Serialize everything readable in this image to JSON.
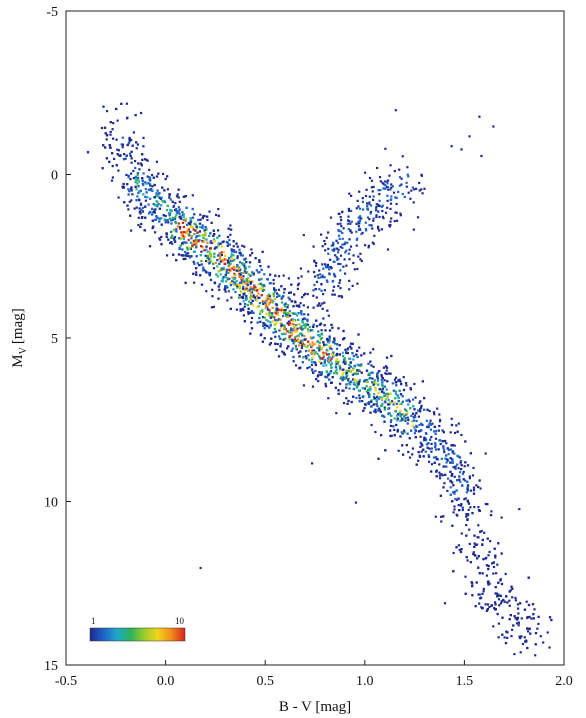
{
  "chart_data": {
    "type": "scatter",
    "subtype": "density-colored scatter (Hertzsprung-Russell diagram)",
    "xlabel": "B - V [mag]",
    "ylabel_main": "M",
    "ylabel_sub": "V",
    "ylabel_unit": "[mag]",
    "xlim": [
      -0.5,
      2.0
    ],
    "ylim": [
      -5,
      15
    ],
    "y_inverted": true,
    "x_ticks": [
      "-0.5",
      "0.0",
      "0.5",
      "1.0",
      "1.5",
      "2.0"
    ],
    "y_ticks": [
      "-5",
      "0",
      "5",
      "10",
      "15"
    ],
    "grid": false,
    "colorbar": {
      "min_label": "1",
      "max_label": "10",
      "colors": [
        "#1f2a8f",
        "#1e63c8",
        "#1fa8c8",
        "#2cb35a",
        "#9ccc2a",
        "#f2d21b",
        "#f08a1a",
        "#d8241e"
      ],
      "placement": "bottom-left"
    },
    "point_color_low": "#1f2a8f",
    "main_sequence_ridge": [
      {
        "x": -0.25,
        "y": -1.5
      },
      {
        "x": -0.15,
        "y": 0.2
      },
      {
        "x": 0.0,
        "y": 1.2
      },
      {
        "x": 0.2,
        "y": 2.2
      },
      {
        "x": 0.4,
        "y": 3.3
      },
      {
        "x": 0.55,
        "y": 4.2
      },
      {
        "x": 0.7,
        "y": 5.1
      },
      {
        "x": 0.9,
        "y": 5.9
      },
      {
        "x": 1.1,
        "y": 6.8
      },
      {
        "x": 1.3,
        "y": 7.9
      },
      {
        "x": 1.45,
        "y": 9.0
      },
      {
        "x": 1.5,
        "y": 10.3
      },
      {
        "x": 1.55,
        "y": 11.6
      },
      {
        "x": 1.62,
        "y": 12.8
      },
      {
        "x": 1.75,
        "y": 13.5
      },
      {
        "x": 1.85,
        "y": 14.2
      }
    ],
    "giant_branch": [
      {
        "x": 0.75,
        "y": 3.5
      },
      {
        "x": 0.85,
        "y": 2.5
      },
      {
        "x": 0.95,
        "y": 1.5
      },
      {
        "x": 1.05,
        "y": 0.8
      },
      {
        "x": 1.2,
        "y": 0.2
      }
    ],
    "isolated_points": [
      {
        "x": -0.2,
        "y": -2.2
      },
      {
        "x": 1.15,
        "y": -2.0
      },
      {
        "x": 1.57,
        "y": -1.8
      },
      {
        "x": 1.64,
        "y": -1.5
      },
      {
        "x": 1.52,
        "y": -1.2
      },
      {
        "x": 1.43,
        "y": -0.9
      },
      {
        "x": 1.48,
        "y": -0.8
      },
      {
        "x": 1.58,
        "y": -0.6
      },
      {
        "x": 0.73,
        "y": 8.8
      },
      {
        "x": 0.95,
        "y": 10.0
      },
      {
        "x": 1.77,
        "y": 10.2
      },
      {
        "x": 0.17,
        "y": 12.0
      },
      {
        "x": 1.58,
        "y": 13.2
      },
      {
        "x": 1.72,
        "y": 13.0
      }
    ]
  }
}
